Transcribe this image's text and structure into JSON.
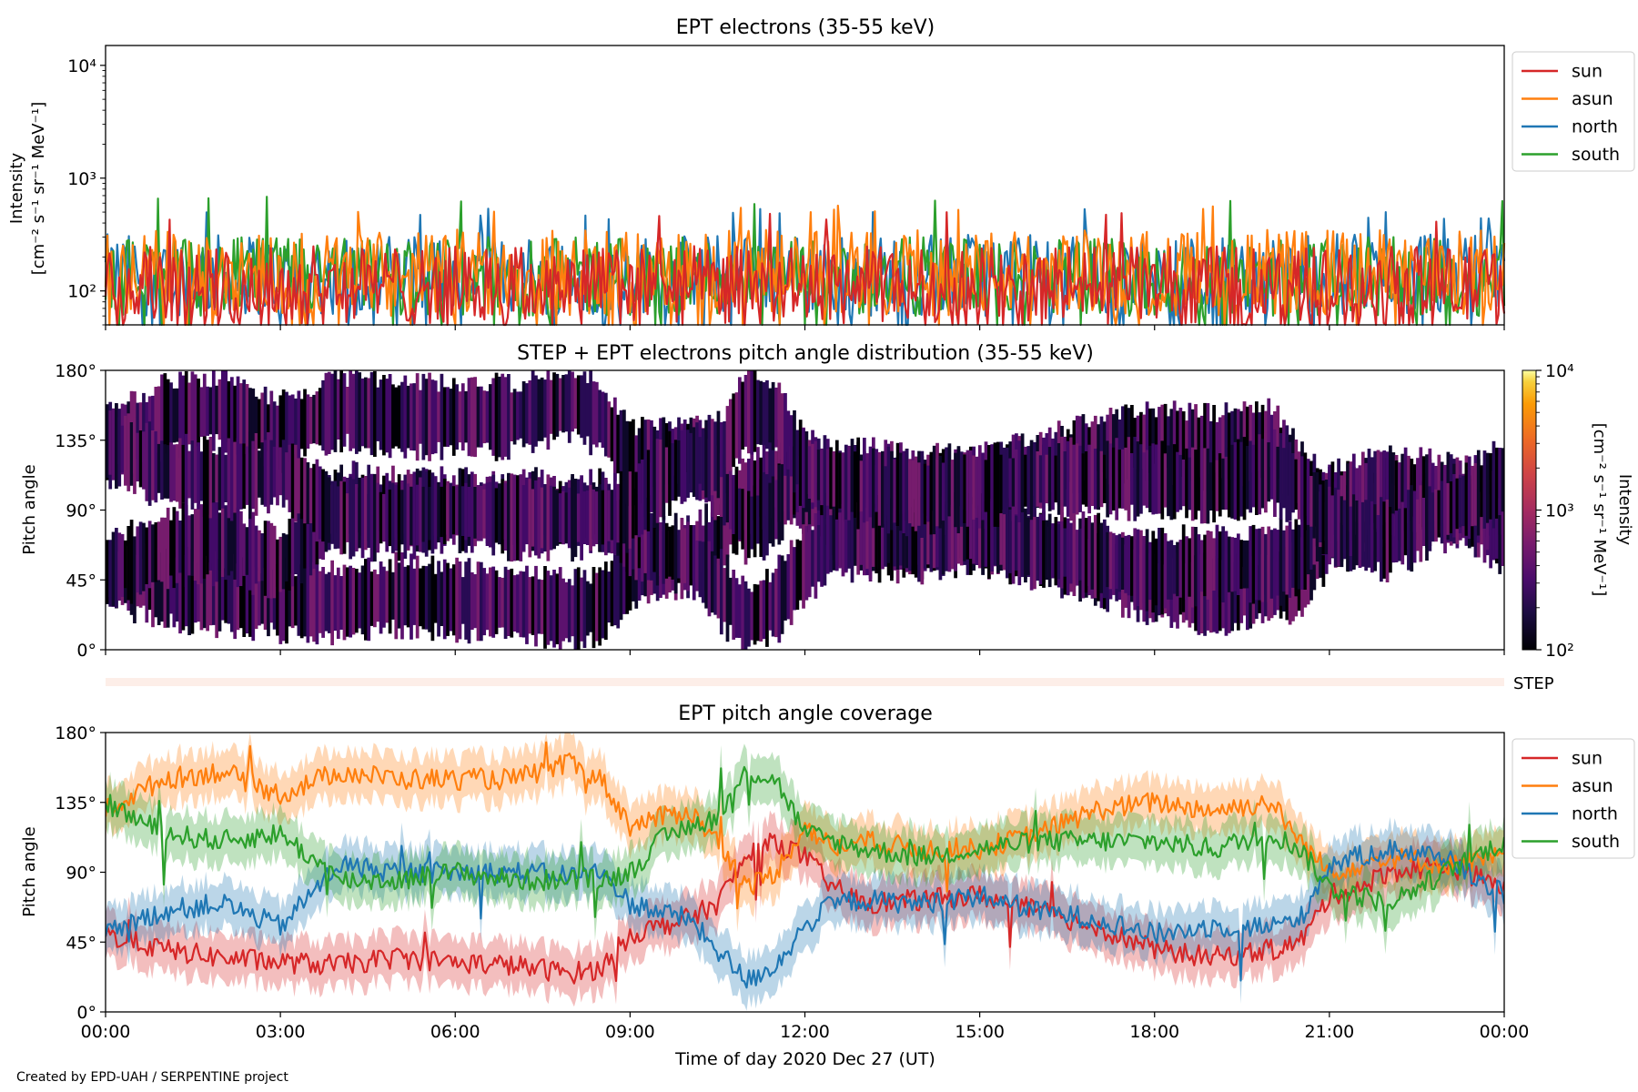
{
  "footer": {
    "credit": "Created by EPD-UAH / SERPENTINE project"
  },
  "colors": {
    "sun": "#d62728",
    "asun": "#ff7f0e",
    "north": "#1f77b4",
    "south": "#2ca02c",
    "step": "#fdeee8"
  },
  "chart_data": [
    {
      "panel": "intensity",
      "type": "line",
      "title": "EPT electrons (35-55 keV)",
      "ylabel": [
        "Intensity",
        "[cm⁻² s⁻¹ sr⁻¹ MeV⁻¹]"
      ],
      "yscale": "log",
      "ylim": [
        50,
        15000
      ],
      "yticks": [
        100,
        1000,
        10000
      ],
      "ytick_labels": [
        "10²",
        "10³",
        "10⁴"
      ],
      "x_range_hours": [
        0,
        24
      ],
      "legend": {
        "placement": "outside-right",
        "entries": [
          "sun",
          "asun",
          "north",
          "south"
        ]
      },
      "series": [
        {
          "name": "sun",
          "typical_range": [
            50,
            250
          ],
          "peak_max": 500
        },
        {
          "name": "asun",
          "typical_range": [
            60,
            350
          ],
          "peak_max": 590
        },
        {
          "name": "north",
          "typical_range": [
            60,
            320
          ],
          "peak_max": 540
        },
        {
          "name": "south",
          "typical_range": [
            60,
            300
          ],
          "peak_max": 700
        }
      ]
    },
    {
      "panel": "pad",
      "type": "heatmap",
      "title": "STEP + EPT electrons pitch angle distribution (35-55 keV)",
      "ylabel": "Pitch angle",
      "ylim": [
        0,
        180
      ],
      "yticks": [
        0,
        45,
        90,
        135,
        180
      ],
      "ytick_labels": [
        "0°",
        "45°",
        "90°",
        "135°",
        "180°"
      ],
      "colorbar": {
        "label": [
          "Intensity",
          "[cm⁻² s⁻¹ sr⁻¹ MeV⁻¹]"
        ],
        "scale": "log",
        "range": [
          100,
          10000
        ],
        "ticks": [
          100,
          1000,
          10000
        ],
        "tick_labels": [
          "10²",
          "10³",
          "10⁴"
        ],
        "colormap": "inferno"
      },
      "typical_intensity": [
        100,
        400
      ],
      "step_bar_label": "STEP"
    },
    {
      "panel": "coverage",
      "type": "line",
      "title": "EPT pitch angle coverage",
      "ylabel": "Pitch angle",
      "xlabel": "Time of day 2020 Dec 27 (UT)",
      "ylim": [
        0,
        180
      ],
      "yticks": [
        0,
        45,
        90,
        135,
        180
      ],
      "ytick_labels": [
        "0°",
        "45°",
        "90°",
        "135°",
        "180°"
      ],
      "x_range_hours": [
        0,
        24
      ],
      "xticks": [
        0,
        3,
        6,
        9,
        12,
        15,
        18,
        21,
        24
      ],
      "xtick_labels": [
        "00:00",
        "03:00",
        "06:00",
        "09:00",
        "12:00",
        "15:00",
        "18:00",
        "21:00",
        "00:00"
      ],
      "band_halfwidth_deg": 15,
      "legend": {
        "placement": "outside-right",
        "entries": [
          "sun",
          "asun",
          "north",
          "south"
        ]
      },
      "series": [
        {
          "name": "sun",
          "x": [
            0,
            1,
            2,
            3,
            4,
            5,
            6,
            7,
            8,
            8.5,
            9,
            9.5,
            10,
            10.5,
            11,
            11.5,
            12,
            12.5,
            13,
            14,
            15,
            16,
            17,
            18,
            19,
            20,
            20.5,
            21,
            21.5,
            22,
            23,
            24
          ],
          "y": [
            50,
            40,
            35,
            32,
            30,
            35,
            32,
            30,
            25,
            28,
            50,
            55,
            60,
            70,
            100,
            110,
            100,
            80,
            70,
            72,
            75,
            65,
            55,
            40,
            35,
            40,
            45,
            75,
            80,
            90,
            95,
            80
          ]
        },
        {
          "name": "asun",
          "x": [
            0,
            1,
            2,
            3,
            4,
            5,
            6,
            7,
            8,
            8.5,
            9,
            9.5,
            10,
            10.5,
            11,
            11.5,
            12,
            12.5,
            13,
            14,
            15,
            16,
            17,
            18,
            19,
            20,
            20.5,
            21,
            21.5,
            22,
            23,
            24
          ],
          "y": [
            130,
            150,
            155,
            140,
            155,
            150,
            150,
            150,
            160,
            150,
            120,
            125,
            130,
            110,
            80,
            90,
            120,
            105,
            110,
            105,
            105,
            115,
            130,
            135,
            130,
            135,
            110,
            90,
            95,
            100,
            95,
            100
          ]
        },
        {
          "name": "north",
          "x": [
            0,
            1,
            2,
            3,
            4,
            5,
            6,
            7,
            8,
            8.5,
            9,
            9.5,
            10,
            10.5,
            11,
            11.5,
            12,
            12.5,
            13,
            14,
            15,
            16,
            17,
            18,
            19,
            20,
            20.5,
            21,
            21.5,
            22,
            23,
            24
          ],
          "y": [
            50,
            65,
            70,
            55,
            95,
            90,
            90,
            90,
            88,
            90,
            70,
            65,
            60,
            40,
            20,
            30,
            55,
            70,
            72,
            70,
            75,
            65,
            60,
            50,
            55,
            55,
            60,
            95,
            100,
            105,
            100,
            75
          ]
        },
        {
          "name": "south",
          "x": [
            0,
            1,
            2,
            3,
            4,
            5,
            6,
            7,
            8,
            8.5,
            9,
            9.5,
            10,
            10.5,
            11,
            11.5,
            12,
            12.5,
            13,
            14,
            15,
            16,
            17,
            18,
            19,
            20,
            20.5,
            21,
            21.5,
            22,
            23,
            24
          ],
          "y": [
            135,
            115,
            110,
            115,
            85,
            85,
            90,
            85,
            85,
            85,
            90,
            110,
            120,
            125,
            155,
            150,
            115,
            110,
            105,
            100,
            105,
            110,
            110,
            110,
            105,
            115,
            105,
            80,
            75,
            70,
            90,
            110
          ]
        }
      ]
    }
  ]
}
